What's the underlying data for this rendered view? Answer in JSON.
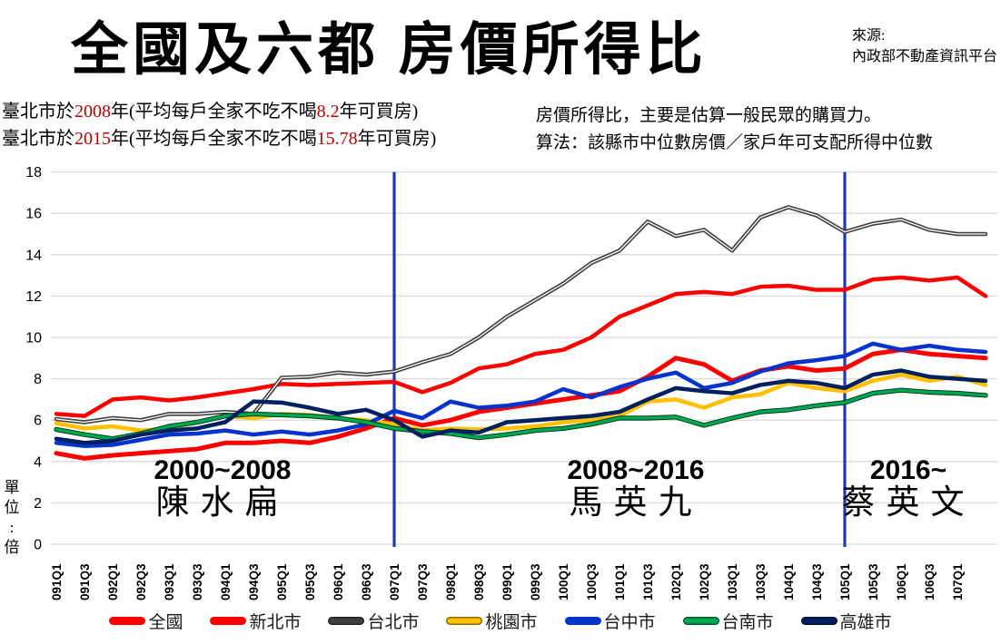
{
  "title": "全國及六都 房價所得比",
  "source": {
    "label": "來源:",
    "name": "內政部不動產資訊平台"
  },
  "annotations": {
    "left": [
      {
        "pre": "臺北市於",
        "year": "2008",
        "mid": "年(平均每戶全家不吃不喝",
        "value": "8.2",
        "post": "年可買房)"
      },
      {
        "pre": "臺北市於",
        "year": "2015",
        "mid": "年(平均每戶全家不吃不喝",
        "value": "15.78",
        "post": "年可買房)"
      }
    ],
    "right": [
      "房價所得比，主要是估算一般民眾的購買力。",
      "算法：該縣市中位數房價／家戶年可支配所得中位數"
    ]
  },
  "y_axis": {
    "unit_label": "單位:倍"
  },
  "periods": [
    {
      "range": "2000~2008",
      "president": "陳水扁"
    },
    {
      "range": "2008~2016",
      "president": "馬英九"
    },
    {
      "range": "2016~",
      "president": "蔡英文"
    }
  ],
  "chart_data": {
    "type": "line",
    "title": "全國及六都房價所得比",
    "ylabel": "單位:倍",
    "ylim": [
      0,
      18
    ],
    "ytick_step": 2,
    "grid": "horizontal",
    "legend_position": "bottom",
    "event_lines": [
      {
        "at": "097Q1",
        "color": "#1F3BB3"
      },
      {
        "at": "105Q1",
        "color": "#1F3BB3"
      }
    ],
    "categories": [
      "091Q1",
      "091Q3",
      "092Q1",
      "092Q3",
      "093Q1",
      "093Q3",
      "094Q1",
      "094Q3",
      "095Q1",
      "095Q3",
      "096Q1",
      "096Q3",
      "097Q1",
      "097Q3",
      "098Q1",
      "098Q3",
      "099Q1",
      "099Q3",
      "100Q1",
      "100Q3",
      "101Q1",
      "101Q3",
      "102Q1",
      "102Q3",
      "103Q1",
      "103Q3",
      "104Q1",
      "104Q3",
      "105Q1",
      "105Q3",
      "106Q1",
      "106Q3",
      "107Q1",
      ""
    ],
    "series": [
      {
        "name": "全國",
        "color": "#FF0000",
        "width": 5,
        "style": "solid",
        "edge": false,
        "values": [
          4.4,
          4.15,
          4.3,
          4.4,
          4.5,
          4.6,
          4.9,
          4.9,
          5.0,
          4.9,
          5.2,
          5.6,
          6.1,
          5.75,
          6.0,
          6.4,
          6.6,
          6.8,
          7.0,
          7.2,
          7.4,
          8.1,
          9.0,
          8.7,
          7.9,
          8.4,
          8.6,
          8.4,
          8.5,
          9.2,
          9.4,
          9.2,
          9.1,
          9.0
        ]
      },
      {
        "name": "新北市",
        "color": "#FF0000",
        "width": 4.5,
        "style": "solid",
        "edge": false,
        "values": [
          6.3,
          6.2,
          7.0,
          7.1,
          6.95,
          7.1,
          7.3,
          7.5,
          7.75,
          7.7,
          7.75,
          7.8,
          7.85,
          7.35,
          7.8,
          8.5,
          8.7,
          9.2,
          9.4,
          10.0,
          11.0,
          11.55,
          12.1,
          12.2,
          12.1,
          12.45,
          12.5,
          12.3,
          12.3,
          12.8,
          12.9,
          12.75,
          12.9,
          12.0
        ]
      },
      {
        "name": "台北市",
        "color": "#404040",
        "width": 4.5,
        "style": "double",
        "edge": true,
        "values": [
          6.05,
          5.9,
          6.1,
          6.0,
          6.3,
          6.3,
          6.4,
          6.3,
          8.05,
          8.1,
          8.3,
          8.2,
          8.35,
          8.8,
          9.2,
          10.0,
          11.0,
          11.8,
          12.6,
          13.6,
          14.2,
          15.6,
          14.9,
          15.2,
          14.2,
          15.8,
          16.3,
          15.9,
          15.1,
          15.5,
          15.7,
          15.2,
          15.0,
          15.0
        ]
      },
      {
        "name": "桃園市",
        "color": "#FFC000",
        "width": 4.5,
        "style": "solid",
        "edge": true,
        "values": [
          5.85,
          5.6,
          5.7,
          5.5,
          5.6,
          5.9,
          6.2,
          6.1,
          6.3,
          6.25,
          6.1,
          6.0,
          5.8,
          5.5,
          5.6,
          5.55,
          5.6,
          5.7,
          5.9,
          6.0,
          6.2,
          6.9,
          7.0,
          6.6,
          7.1,
          7.25,
          7.8,
          7.55,
          7.4,
          7.9,
          8.2,
          7.9,
          8.1,
          7.7
        ]
      },
      {
        "name": "台中市",
        "color": "#0633CC",
        "width": 4.5,
        "style": "solid",
        "edge": false,
        "values": [
          4.9,
          4.75,
          4.8,
          5.05,
          5.3,
          5.35,
          5.5,
          5.3,
          5.45,
          5.3,
          5.5,
          5.8,
          6.45,
          6.1,
          6.9,
          6.6,
          6.7,
          6.9,
          7.5,
          7.1,
          7.6,
          8.0,
          8.3,
          7.55,
          7.8,
          8.35,
          8.75,
          8.9,
          9.1,
          9.7,
          9.4,
          9.6,
          9.4,
          9.3
        ]
      },
      {
        "name": "台南市",
        "color": "#00A650",
        "width": 3.5,
        "style": "outlined",
        "edge": true,
        "values": [
          5.55,
          5.3,
          5.1,
          5.35,
          5.7,
          5.9,
          6.2,
          6.3,
          6.25,
          6.2,
          6.1,
          5.9,
          5.6,
          5.45,
          5.35,
          5.15,
          5.3,
          5.5,
          5.6,
          5.8,
          6.1,
          6.1,
          6.15,
          5.75,
          6.1,
          6.4,
          6.5,
          6.7,
          6.85,
          7.3,
          7.45,
          7.35,
          7.3,
          7.2
        ]
      },
      {
        "name": "高雄市",
        "color": "#002060",
        "width": 4.5,
        "style": "solid",
        "edge": true,
        "values": [
          5.1,
          4.9,
          5.0,
          5.3,
          5.5,
          5.6,
          5.9,
          6.9,
          6.85,
          6.6,
          6.3,
          6.5,
          6.0,
          5.2,
          5.5,
          5.4,
          5.9,
          6.0,
          6.1,
          6.2,
          6.4,
          7.0,
          7.55,
          7.4,
          7.3,
          7.7,
          7.9,
          7.8,
          7.55,
          8.2,
          8.4,
          8.1,
          8.0,
          7.9
        ]
      }
    ]
  }
}
